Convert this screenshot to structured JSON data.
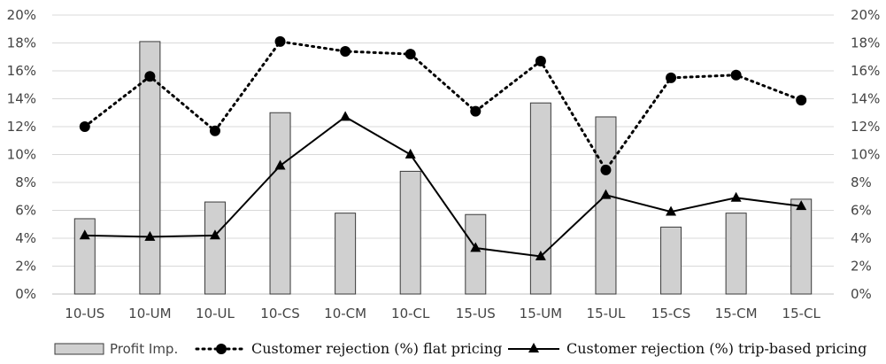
{
  "chart_data": {
    "type": "bar+line",
    "categories": [
      "10-US",
      "10-UM",
      "10-UL",
      "10-CS",
      "10-CM",
      "10-CL",
      "15-US",
      "15-UM",
      "15-UL",
      "15-CS",
      "15-CM",
      "15-CL"
    ],
    "series": [
      {
        "name": "Profit Imp.",
        "type": "bar",
        "values": [
          5.4,
          18.1,
          6.6,
          13.0,
          5.8,
          8.8,
          5.7,
          13.7,
          12.7,
          4.8,
          5.8,
          6.8
        ]
      },
      {
        "name": "Customer rejection (%) flat pricing",
        "type": "line",
        "line_style": "dotted",
        "marker": "circle",
        "values": [
          12.0,
          15.6,
          11.7,
          18.1,
          17.4,
          17.2,
          13.1,
          16.7,
          8.9,
          15.5,
          15.7,
          13.9
        ]
      },
      {
        "name": "Customer rejection (%) trip-based pricing",
        "type": "line",
        "line_style": "solid",
        "marker": "triangle",
        "values": [
          4.2,
          4.1,
          4.2,
          9.2,
          12.7,
          10.0,
          3.3,
          2.7,
          7.1,
          5.9,
          6.9,
          6.3
        ]
      }
    ],
    "ylim": [
      0,
      20
    ],
    "y_ticks": [
      "0%",
      "2%",
      "4%",
      "6%",
      "8%",
      "10%",
      "12%",
      "14%",
      "16%",
      "18%",
      "20%"
    ],
    "secondary_y_ticks": [
      "0%",
      "2%",
      "4%",
      "6%",
      "8%",
      "10%",
      "12%",
      "14%",
      "16%",
      "18%",
      "20%"
    ],
    "grid": "horizontal",
    "legend_position": "bottom",
    "colors": {
      "bar_fill": "#d0d0d0",
      "bar_stroke": "#3a3a3a",
      "line": "#000000",
      "grid": "#d9d9d9",
      "axis_text": "#444444"
    }
  }
}
